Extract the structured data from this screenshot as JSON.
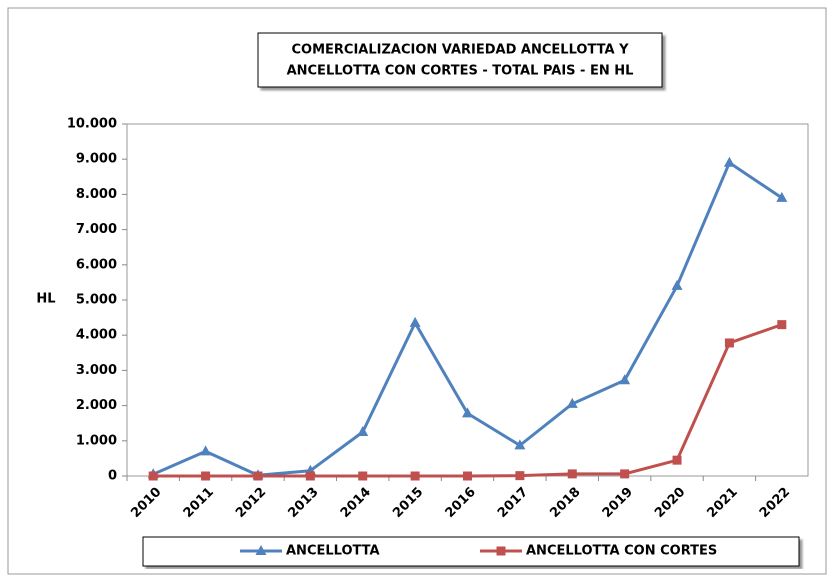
{
  "chart_data": {
    "type": "line",
    "title": [
      "COMERCIALIZACION VARIEDAD ANCELLOTTA  Y",
      "ANCELLOTTA CON CORTES - TOTAL PAIS - EN HL"
    ],
    "y_label": "HL",
    "categories": [
      "2010",
      "2011",
      "2012",
      "2013",
      "2014",
      "2015",
      "2016",
      "2017",
      "2018",
      "2019",
      "2020",
      "2021",
      "2022"
    ],
    "series": [
      {
        "name": "ANCELLOTTA",
        "color": "#4f81bd",
        "marker": "triangle",
        "values": [
          50,
          700,
          20,
          150,
          1250,
          4350,
          1780,
          870,
          2050,
          2720,
          5400,
          8900,
          7900
        ]
      },
      {
        "name": "ANCELLOTTA CON CORTES",
        "color": "#c0504d",
        "marker": "square",
        "values": [
          0,
          0,
          0,
          0,
          0,
          0,
          0,
          10,
          60,
          60,
          450,
          3780,
          4300
        ]
      }
    ],
    "ylim": [
      0,
      10000
    ],
    "yticks": [
      0,
      {
        "value": 1000,
        "label": "1.000"
      },
      {
        "value": 2000,
        "label": "2.000"
      },
      {
        "value": 3000,
        "label": "3.000"
      },
      {
        "value": 4000,
        "label": "4.000"
      },
      {
        "value": 5000,
        "label": "5.000"
      },
      {
        "value": 6000,
        "label": "6.000"
      },
      {
        "value": 7000,
        "label": "7.000"
      },
      {
        "value": 8000,
        "label": "8.000"
      },
      {
        "value": 9000,
        "label": "9.000"
      },
      {
        "value": 10000,
        "label": "10.000"
      }
    ],
    "grid": false,
    "legend": "bottom"
  }
}
